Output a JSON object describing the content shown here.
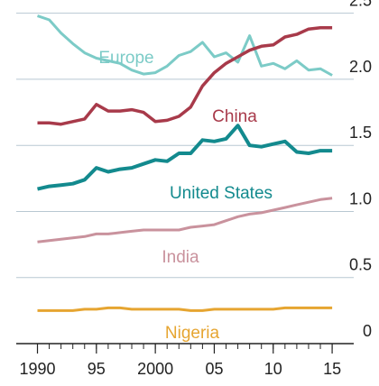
{
  "chart_data": {
    "type": "line",
    "x": [
      1990,
      1991,
      1992,
      1993,
      1994,
      1995,
      1996,
      1997,
      1998,
      1999,
      2000,
      2001,
      2002,
      2003,
      2004,
      2005,
      2006,
      2007,
      2008,
      2009,
      2010,
      2011,
      2012,
      2013,
      2014,
      2015
    ],
    "series": [
      {
        "name": "Europe",
        "color": "#7ccbc7",
        "values": [
          2.48,
          2.45,
          2.35,
          2.27,
          2.2,
          2.16,
          2.14,
          2.12,
          2.07,
          2.04,
          2.05,
          2.1,
          2.18,
          2.21,
          2.28,
          2.17,
          2.2,
          2.13,
          2.33,
          2.1,
          2.12,
          2.08,
          2.14,
          2.07,
          2.08,
          2.03
        ]
      },
      {
        "name": "China",
        "color": "#a83a4a",
        "values": [
          1.67,
          1.67,
          1.66,
          1.68,
          1.7,
          1.81,
          1.76,
          1.76,
          1.77,
          1.75,
          1.68,
          1.69,
          1.72,
          1.79,
          1.95,
          2.05,
          2.12,
          2.17,
          2.22,
          2.25,
          2.26,
          2.32,
          2.34,
          2.38,
          2.39,
          2.39
        ]
      },
      {
        "name": "United States",
        "color": "#138a8e",
        "values": [
          1.17,
          1.19,
          1.2,
          1.21,
          1.24,
          1.33,
          1.3,
          1.32,
          1.33,
          1.36,
          1.39,
          1.38,
          1.44,
          1.44,
          1.54,
          1.53,
          1.55,
          1.65,
          1.5,
          1.49,
          1.51,
          1.53,
          1.45,
          1.44,
          1.46,
          1.46
        ]
      },
      {
        "name": "India",
        "color": "#c9929d",
        "values": [
          0.77,
          0.78,
          0.79,
          0.8,
          0.81,
          0.83,
          0.83,
          0.84,
          0.85,
          0.86,
          0.86,
          0.86,
          0.86,
          0.88,
          0.89,
          0.9,
          0.93,
          0.96,
          0.98,
          0.99,
          1.01,
          1.03,
          1.05,
          1.07,
          1.09,
          1.1
        ]
      },
      {
        "name": "Nigeria",
        "color": "#e6a531",
        "values": [
          0.25,
          0.25,
          0.25,
          0.25,
          0.26,
          0.26,
          0.27,
          0.27,
          0.26,
          0.26,
          0.26,
          0.26,
          0.26,
          0.25,
          0.25,
          0.26,
          0.26,
          0.26,
          0.26,
          0.26,
          0.26,
          0.27,
          0.27,
          0.27,
          0.27,
          0.27
        ]
      }
    ],
    "xlim": [
      1988.2,
      2015.3
    ],
    "xticks": [
      {
        "value": 1990,
        "label": "1990"
      },
      {
        "value": 1995,
        "label": "95"
      },
      {
        "value": 2000,
        "label": "2000"
      },
      {
        "value": 2005,
        "label": "05"
      },
      {
        "value": 2010,
        "label": "10"
      },
      {
        "value": 2015,
        "label": "15"
      }
    ],
    "ylim": [
      0,
      2.6
    ],
    "yticks": [
      0,
      0.5,
      {
        "value": 1,
        "label": "1.0"
      },
      1.5,
      {
        "value": 2,
        "label": "2.0"
      },
      2.5
    ],
    "grid": true
  }
}
